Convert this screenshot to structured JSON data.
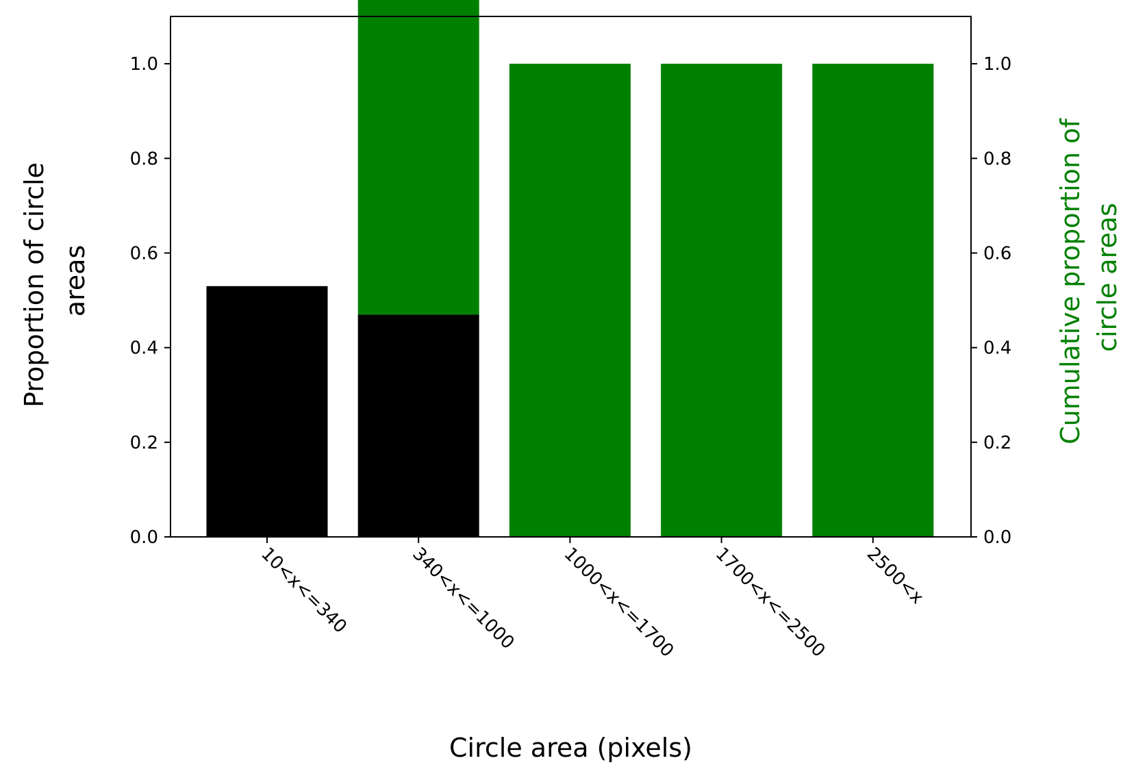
{
  "chart_data": {
    "type": "bar",
    "categories": [
      "10<x<=340",
      "340<x<=1000",
      "1000<x<=1700",
      "1700<x<=2500",
      "2500<x"
    ],
    "series": [
      {
        "values": [
          0.53,
          0.47,
          0,
          0,
          0
        ],
        "color": "#000000",
        "axis": "left"
      },
      {
        "values": [
          0,
          1.0,
          1.0,
          1.0,
          1.0
        ],
        "color": "#008000",
        "axis": "right"
      }
    ],
    "xlabel": "Circle area (pixels)",
    "ylabel": "Proportion of circle areas",
    "ylabel_lines": [
      "Proportion of circle",
      "areas"
    ],
    "y2label": "Cumulative proportion of circle areas",
    "y2label_lines": [
      "Cumulative proportion of",
      "circle areas"
    ],
    "y2label_color": "#008000",
    "ylim": [
      0,
      1.1
    ],
    "y2lim": [
      0,
      1.1
    ],
    "yticks": [
      0.0,
      0.2,
      0.4,
      0.6,
      0.8,
      1.0
    ],
    "ytick_labels": [
      "0.0",
      "0.2",
      "0.4",
      "0.6",
      "0.8",
      "1.0"
    ],
    "grid": false,
    "legend": "none"
  }
}
